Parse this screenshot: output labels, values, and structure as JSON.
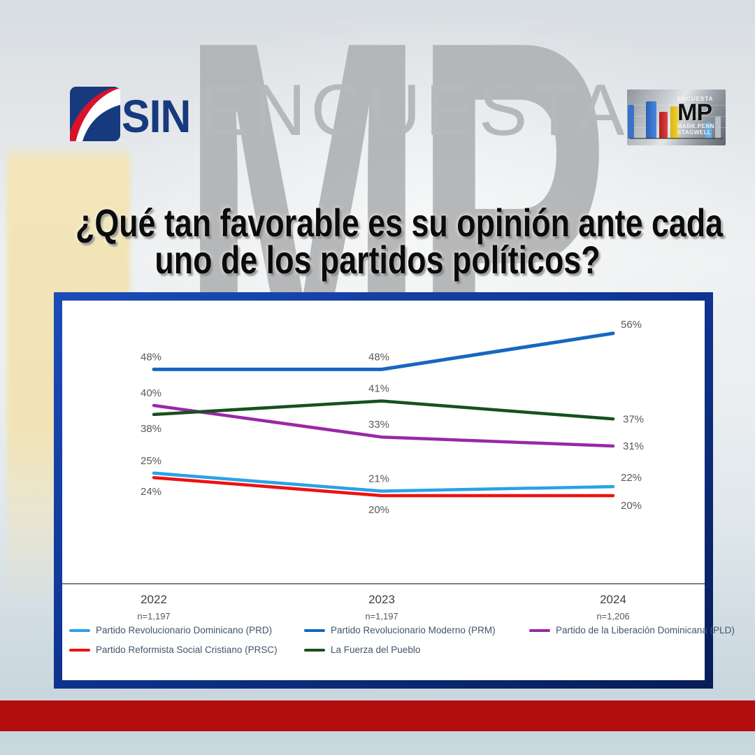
{
  "branding": {
    "sin_word": "SIN",
    "encuesta_header": "ENCUESTA",
    "watermark": "MP",
    "mp_logo": {
      "encuesta": "ENCUESTA",
      "mp": "MP",
      "sub1": "MARK PENN",
      "sub2": "STAGWELL"
    }
  },
  "title": {
    "line1": "¿Qué tan favorable es su opinión ante cada",
    "line2": "uno de los partidos políticos?"
  },
  "chart_data": {
    "type": "line",
    "title": "¿Qué tan favorable es su opinión ante cada uno de los partidos políticos?",
    "categories": [
      "2022",
      "2023",
      "2024"
    ],
    "sample_sizes": [
      "n=1,197",
      "n=1,197",
      "n=1,206"
    ],
    "xlabel": "",
    "ylabel": "",
    "ylim": [
      0,
      65
    ],
    "grid": false,
    "legend_position": "bottom",
    "label_color": "#595959",
    "axis_color": "#808080",
    "series": [
      {
        "name": "Partido Revolucionario Dominicano (PRD)",
        "color": "#29a2e6",
        "stroke_width": 4.5,
        "values": [
          25,
          21,
          22
        ],
        "labels": [
          "25%",
          "21%",
          "22%"
        ],
        "label_pos": [
          "above",
          "above",
          "right-above"
        ]
      },
      {
        "name": "Partido Revolucionario Moderno (PRM)",
        "color": "#1667c0",
        "stroke_width": 5,
        "values": [
          48,
          48,
          56
        ],
        "labels": [
          "48%",
          "48%",
          "56%"
        ],
        "label_pos": [
          "above",
          "above",
          "right-above"
        ]
      },
      {
        "name": "Partido de la Liberación Dominicana (PLD)",
        "color": "#9a27a8",
        "stroke_width": 4.5,
        "values": [
          40,
          33,
          31
        ],
        "labels": [
          "40%",
          "33%",
          "31%"
        ],
        "label_pos": [
          "above",
          "above",
          "right"
        ]
      },
      {
        "name": "Partido Reformista Social Cristiano (PRSC)",
        "color": "#ee1111",
        "stroke_width": 4.5,
        "values": [
          24,
          20,
          20
        ],
        "labels": [
          "24%",
          "20%",
          "20%"
        ],
        "label_pos": [
          "below",
          "below",
          "right-below"
        ]
      },
      {
        "name": "La Fuerza del Pueblo",
        "color": "#17501f",
        "stroke_width": 4.5,
        "values": [
          38,
          41,
          37
        ],
        "labels": [
          "38%",
          "41%",
          "37%"
        ],
        "label_pos": [
          "below",
          "above",
          "right"
        ]
      }
    ],
    "legend_order_rows": [
      [
        "Partido Revolucionario Dominicano (PRD)",
        "Partido Revolucionario Moderno (PRM)",
        "Partido de la Liberación Dominicana (PLD)"
      ],
      [
        "Partido Reformista Social Cristiano (PRSC)",
        "La Fuerza del Pueblo"
      ]
    ]
  },
  "colors": {
    "footer_bar": "#b30d0d",
    "chart_border": "#10369a",
    "watermark_gray": "#b1b2b4",
    "sin_navy": "#17397e",
    "sin_red": "#d6132a"
  }
}
